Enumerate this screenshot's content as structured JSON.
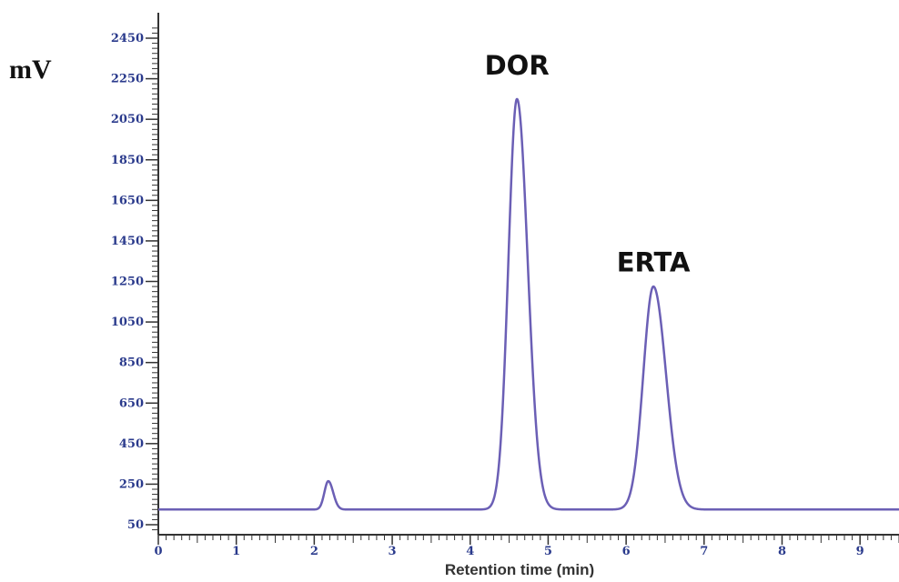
{
  "chart_data": {
    "type": "line",
    "title": "",
    "xlabel": "Retention time (min)",
    "ylabel": "mV",
    "xlim": [
      0,
      9.5
    ],
    "ylim": [
      50,
      2450
    ],
    "x_ticks": [
      0,
      1,
      2,
      3,
      4,
      5,
      6,
      7,
      8,
      9
    ],
    "y_ticks": [
      50,
      250,
      450,
      650,
      850,
      1050,
      1250,
      1450,
      1650,
      1850,
      2050,
      2250,
      2450
    ],
    "grid": false,
    "line_color": "#6b5fb5",
    "axis_color": "#333333",
    "tick_label_color": "#2a3a8c",
    "baseline": 125,
    "peaks": [
      {
        "retention_time": 2.18,
        "height": 265,
        "width": 0.05
      },
      {
        "retention_time": 4.6,
        "height": 2150,
        "width": 0.11
      },
      {
        "retention_time": 6.35,
        "height": 1225,
        "width": 0.13
      }
    ],
    "annotations": [
      {
        "text": "DOR",
        "x": 4.6,
        "y": 2270
      },
      {
        "text": "ERTA",
        "x": 6.35,
        "y": 1300
      }
    ]
  }
}
